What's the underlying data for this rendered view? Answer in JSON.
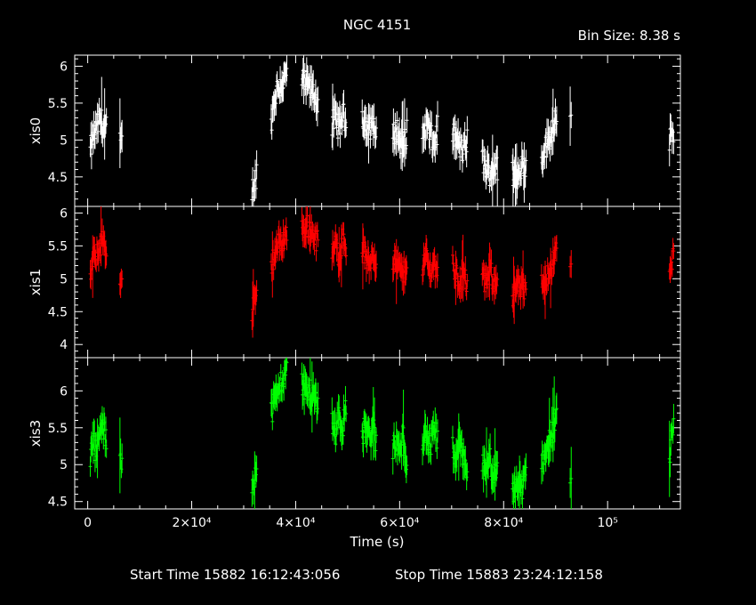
{
  "title": "NGC 4151",
  "bin_size": "Bin Size:  8.38  s",
  "footer": {
    "start": "Start Time  15882  16:12:43:056",
    "stop": "Stop Time  15883  23:24:12:158"
  },
  "colors": {
    "background": "#000000",
    "axes": "#ffffff",
    "xis0": "#ffffff",
    "xis1": "#ff0000",
    "xis3": "#00ff00"
  },
  "chart_data": {
    "type": "scatter",
    "xlabel": "Time (s)",
    "xlim": [
      -2500,
      114000
    ],
    "x_ticks": [
      {
        "value": 0,
        "label": "0"
      },
      {
        "value": 20000,
        "label": "2×10⁴"
      },
      {
        "value": 40000,
        "label": "4×10⁴"
      },
      {
        "value": 60000,
        "label": "6×10⁴"
      },
      {
        "value": 80000,
        "label": "8×10⁴"
      },
      {
        "value": 100000,
        "label": "10⁵"
      }
    ],
    "panels": [
      {
        "name": "xis0",
        "ylabel": "xis0",
        "color": "#ffffff",
        "ylim": [
          4.1,
          6.15
        ],
        "y_ticks": [
          "4.5",
          "5",
          "5.5",
          "6"
        ],
        "segments": [
          {
            "t0": 500,
            "t1": 3600,
            "means": [
              4.85,
              5.05,
              5.15,
              5.3,
              5.2,
              5.15
            ]
          },
          {
            "t0": 6200,
            "t1": 6600,
            "means": [
              4.95
            ]
          },
          {
            "t0": 31600,
            "t1": 32500,
            "means": [
              4.3,
              4.55
            ]
          },
          {
            "t0": 35300,
            "t1": 38300,
            "means": [
              5.25,
              5.55,
              5.7,
              5.75,
              5.8,
              5.9
            ]
          },
          {
            "t0": 41200,
            "t1": 44300,
            "means": [
              5.8,
              5.75,
              5.65,
              5.5
            ]
          },
          {
            "t0": 47000,
            "t1": 49700,
            "means": [
              5.2,
              5.3,
              5.15,
              5.35,
              5.25
            ]
          },
          {
            "t0": 52800,
            "t1": 55500,
            "means": [
              5.35,
              5.2,
              5.1,
              5.3,
              5.0
            ]
          },
          {
            "t0": 58700,
            "t1": 61400,
            "means": [
              5.05,
              5.15,
              5.0,
              4.95,
              5.1
            ]
          },
          {
            "t0": 64400,
            "t1": 67300,
            "means": [
              5.05,
              5.2,
              5.1,
              4.9,
              5.15
            ]
          },
          {
            "t0": 70200,
            "t1": 73000,
            "means": [
              5.1,
              5.0,
              4.9,
              4.85,
              5.0
            ]
          },
          {
            "t0": 75900,
            "t1": 78800,
            "means": [
              4.75,
              4.6,
              4.55,
              4.65,
              4.6
            ]
          },
          {
            "t0": 81700,
            "t1": 84300,
            "means": [
              4.55,
              4.45,
              4.7,
              4.6
            ]
          },
          {
            "t0": 87300,
            "t1": 90200,
            "means": [
              4.8,
              4.9,
              5.0,
              5.2,
              5.4
            ]
          },
          {
            "t0": 92800,
            "t1": 93000,
            "means": [
              5.2
            ]
          },
          {
            "t0": 111900,
            "t1": 112700,
            "means": [
              4.95,
              5.05,
              5.1
            ]
          }
        ]
      },
      {
        "name": "xis1",
        "ylabel": "xis1",
        "color": "#ff0000",
        "ylim": [
          3.8,
          6.1
        ],
        "y_ticks": [
          "4",
          "4.5",
          "5",
          "5.5",
          "6"
        ],
        "segments": [
          {
            "t0": 500,
            "t1": 3600,
            "means": [
              5.0,
              5.3,
              5.35,
              5.5,
              5.6,
              5.45
            ]
          },
          {
            "t0": 6200,
            "t1": 6600,
            "means": [
              4.9
            ]
          },
          {
            "t0": 31600,
            "t1": 32500,
            "means": [
              4.5,
              4.7
            ]
          },
          {
            "t0": 35300,
            "t1": 38300,
            "means": [
              5.2,
              5.35,
              5.5,
              5.55,
              5.6,
              5.7
            ]
          },
          {
            "t0": 41200,
            "t1": 44300,
            "means": [
              5.75,
              5.8,
              5.7,
              5.55
            ]
          },
          {
            "t0": 47000,
            "t1": 49700,
            "means": [
              5.4,
              5.5,
              5.35,
              5.6,
              5.45
            ]
          },
          {
            "t0": 52800,
            "t1": 55500,
            "means": [
              5.5,
              5.3,
              5.2,
              5.4,
              5.25
            ]
          },
          {
            "t0": 58700,
            "t1": 61400,
            "means": [
              5.3,
              5.2,
              5.15,
              5.05,
              5.25
            ]
          },
          {
            "t0": 64400,
            "t1": 67300,
            "means": [
              5.2,
              5.35,
              5.1,
              5.25,
              5.15
            ]
          },
          {
            "t0": 70200,
            "t1": 73000,
            "means": [
              5.2,
              5.05,
              4.95,
              5.1,
              4.9
            ]
          },
          {
            "t0": 75900,
            "t1": 78800,
            "means": [
              5.0,
              4.9,
              5.15,
              4.95,
              5.05
            ]
          },
          {
            "t0": 81700,
            "t1": 84300,
            "means": [
              4.7,
              4.9,
              4.85,
              4.8
            ]
          },
          {
            "t0": 87300,
            "t1": 90200,
            "means": [
              4.9,
              5.0,
              5.1,
              5.25,
              5.45
            ]
          },
          {
            "t0": 92800,
            "t1": 93000,
            "means": [
              5.2
            ]
          },
          {
            "t0": 111900,
            "t1": 112700,
            "means": [
              5.0,
              5.25,
              5.4
            ]
          }
        ]
      },
      {
        "name": "xis3",
        "ylabel": "xis3",
        "color": "#00ff00",
        "ylim": [
          4.4,
          6.45
        ],
        "y_ticks": [
          "4.5",
          "5",
          "5.5",
          "6"
        ],
        "segments": [
          {
            "t0": 500,
            "t1": 3600,
            "means": [
              5.1,
              5.3,
              5.15,
              5.45,
              5.5,
              5.3
            ]
          },
          {
            "t0": 6200,
            "t1": 6600,
            "means": [
              5.1
            ]
          },
          {
            "t0": 31600,
            "t1": 32500,
            "means": [
              4.75,
              4.95
            ]
          },
          {
            "t0": 35300,
            "t1": 38300,
            "means": [
              5.7,
              5.85,
              5.95,
              6.1,
              6.2,
              6.3
            ]
          },
          {
            "t0": 41200,
            "t1": 44300,
            "means": [
              6.1,
              6.0,
              5.95,
              5.85
            ]
          },
          {
            "t0": 47000,
            "t1": 49700,
            "means": [
              5.6,
              5.45,
              5.7,
              5.5,
              5.75
            ]
          },
          {
            "t0": 52800,
            "t1": 55500,
            "means": [
              5.4,
              5.55,
              5.35,
              5.5,
              5.3
            ]
          },
          {
            "t0": 58700,
            "t1": 61400,
            "means": [
              5.2,
              5.3,
              5.15,
              5.4,
              5.05
            ]
          },
          {
            "t0": 64400,
            "t1": 67300,
            "means": [
              5.3,
              5.45,
              5.2,
              5.5,
              5.35
            ]
          },
          {
            "t0": 70200,
            "t1": 73000,
            "means": [
              5.2,
              5.0,
              5.3,
              5.1,
              4.95
            ]
          },
          {
            "t0": 75900,
            "t1": 78800,
            "means": [
              5.0,
              4.85,
              5.1,
              4.8,
              4.9
            ]
          },
          {
            "t0": 81700,
            "t1": 84300,
            "means": [
              4.6,
              4.75,
              4.65,
              4.9
            ]
          },
          {
            "t0": 87300,
            "t1": 90200,
            "means": [
              5.0,
              5.2,
              5.3,
              5.5,
              5.6
            ]
          },
          {
            "t0": 92800,
            "t1": 93000,
            "means": [
              4.8
            ]
          },
          {
            "t0": 111900,
            "t1": 112700,
            "means": [
              5.1,
              5.3,
              5.45
            ]
          }
        ]
      }
    ]
  }
}
